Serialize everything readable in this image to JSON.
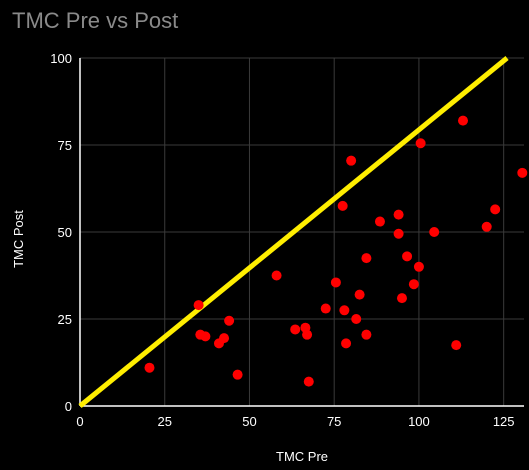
{
  "chart_data": {
    "type": "scatter",
    "title": "TMC Pre vs Post",
    "xlabel": "TMC Pre",
    "ylabel": "TMC Post",
    "xlim": [
      0,
      131
    ],
    "ylim": [
      0,
      100
    ],
    "x_ticks": [
      "0",
      "25",
      "50",
      "75",
      "100",
      "125"
    ],
    "y_ticks": [
      "0",
      "25",
      "50",
      "75",
      "100"
    ],
    "grid": true,
    "legend": "none",
    "colors": {
      "background": "#000000",
      "points": "#ff0000",
      "reference_line": "#ffee00",
      "grid": "#3a3a3a",
      "axis": "#ffffff",
      "title": "#8a8a8a"
    },
    "reference_line": {
      "x": [
        0,
        126
      ],
      "y": [
        0,
        100
      ]
    },
    "series": [
      {
        "points": [
          {
            "x": 20.5,
            "y": 11
          },
          {
            "x": 35,
            "y": 29
          },
          {
            "x": 35.5,
            "y": 20.5
          },
          {
            "x": 37,
            "y": 20
          },
          {
            "x": 41,
            "y": 18
          },
          {
            "x": 42.5,
            "y": 19.5
          },
          {
            "x": 44,
            "y": 24.5
          },
          {
            "x": 46.5,
            "y": 9
          },
          {
            "x": 58,
            "y": 37.5
          },
          {
            "x": 63.5,
            "y": 22
          },
          {
            "x": 66.5,
            "y": 22.5
          },
          {
            "x": 67,
            "y": 20.5
          },
          {
            "x": 67.5,
            "y": 7
          },
          {
            "x": 72.5,
            "y": 28
          },
          {
            "x": 75.5,
            "y": 35.5
          },
          {
            "x": 77.5,
            "y": 57.5
          },
          {
            "x": 78,
            "y": 27.5
          },
          {
            "x": 78.5,
            "y": 18
          },
          {
            "x": 80,
            "y": 70.5
          },
          {
            "x": 81.5,
            "y": 25
          },
          {
            "x": 82.5,
            "y": 32
          },
          {
            "x": 84.5,
            "y": 42.5
          },
          {
            "x": 84.5,
            "y": 20.5
          },
          {
            "x": 88.5,
            "y": 53
          },
          {
            "x": 94,
            "y": 55
          },
          {
            "x": 94,
            "y": 49.5
          },
          {
            "x": 95,
            "y": 31
          },
          {
            "x": 96.5,
            "y": 43
          },
          {
            "x": 98.5,
            "y": 35
          },
          {
            "x": 100,
            "y": 40
          },
          {
            "x": 100.5,
            "y": 75.5
          },
          {
            "x": 104.5,
            "y": 50
          },
          {
            "x": 111,
            "y": 17.5
          },
          {
            "x": 113,
            "y": 82
          },
          {
            "x": 120,
            "y": 51.5
          },
          {
            "x": 122.5,
            "y": 56.5
          },
          {
            "x": 130.5,
            "y": 67
          }
        ]
      }
    ]
  }
}
